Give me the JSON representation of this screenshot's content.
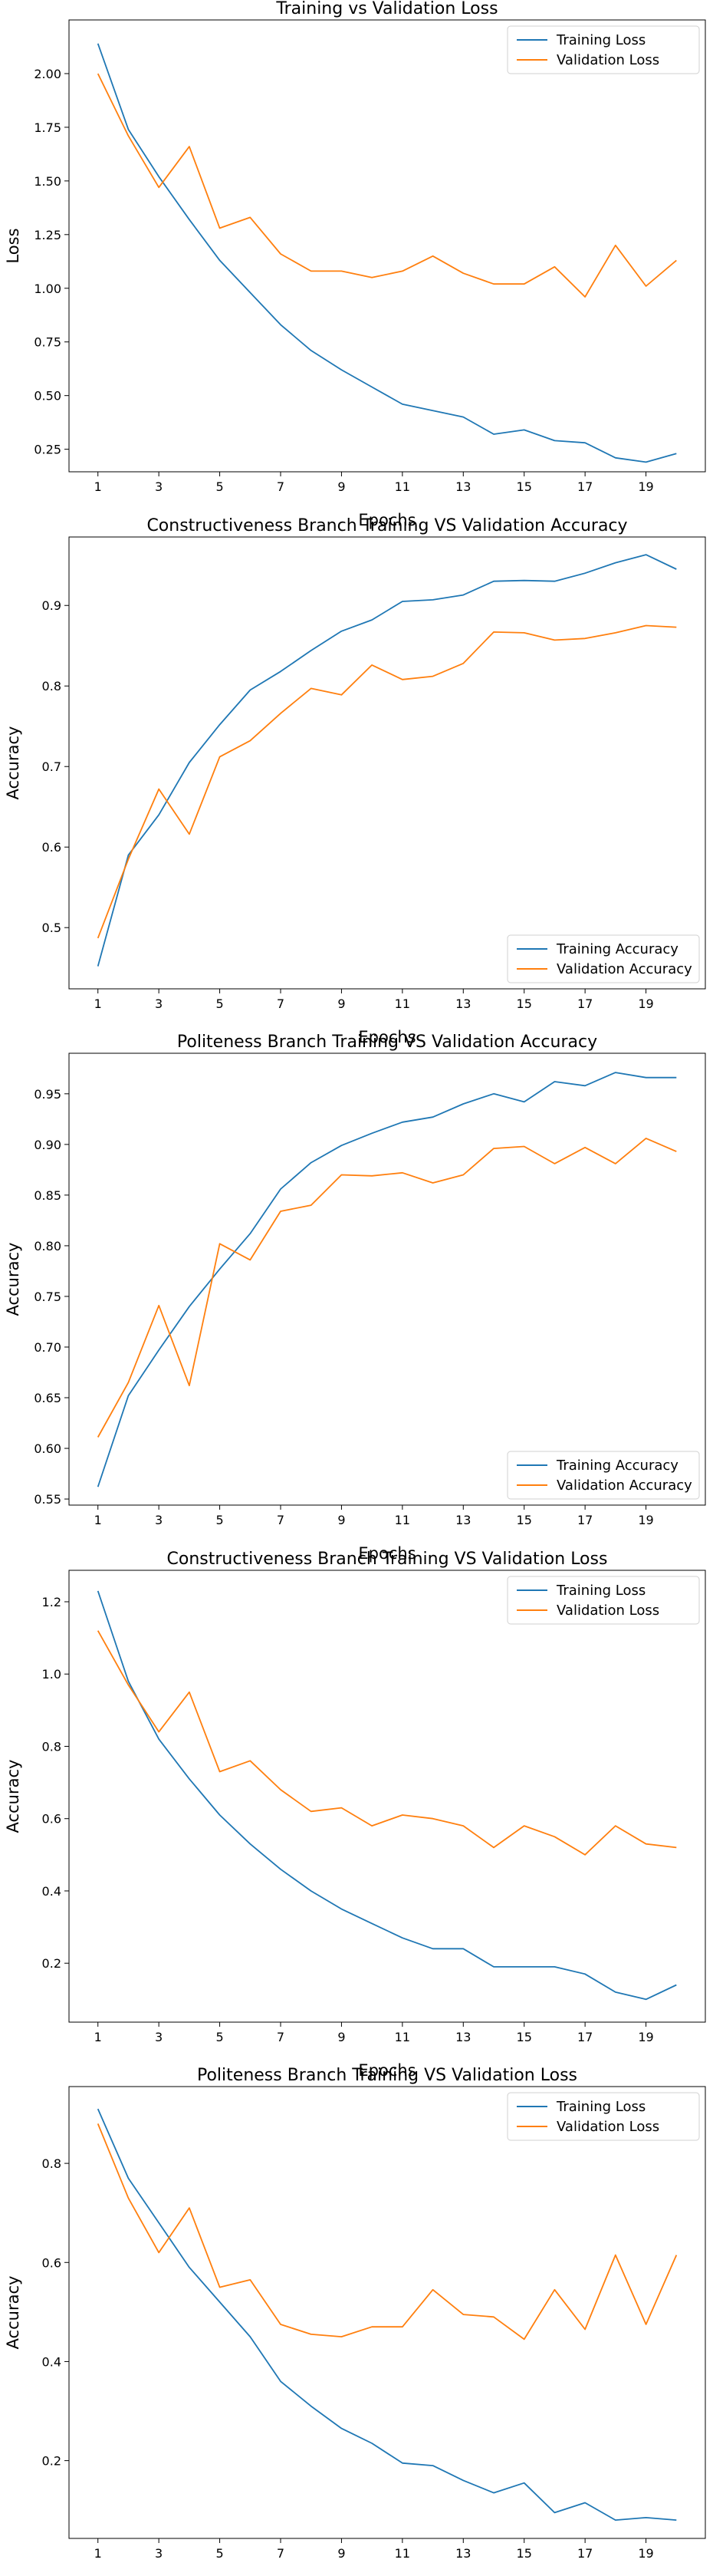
{
  "chart_data": [
    {
      "type": "line",
      "title": "Training vs Validation Loss",
      "xlabel": "Epochs",
      "ylabel": "Loss",
      "x": [
        1,
        2,
        3,
        4,
        5,
        6,
        7,
        8,
        9,
        10,
        11,
        12,
        13,
        14,
        15,
        16,
        17,
        18,
        19,
        20
      ],
      "xticks": [
        1,
        3,
        5,
        7,
        9,
        11,
        13,
        15,
        17,
        19
      ],
      "xlim": [
        0.05,
        20.95
      ],
      "ylim": [
        0.145,
        2.25
      ],
      "yticks": [
        0.25,
        0.5,
        0.75,
        1.0,
        1.25,
        1.5,
        1.75,
        2.0
      ],
      "ytick_labels": [
        "0.25",
        "0.50",
        "0.75",
        "1.00",
        "1.25",
        "1.50",
        "1.75",
        "2.00"
      ],
      "legend_position": "top-right",
      "series": [
        {
          "name": "Training Loss",
          "color": "#1f77b4",
          "values": [
            2.14,
            1.74,
            1.52,
            1.32,
            1.13,
            0.98,
            0.83,
            0.71,
            0.62,
            0.54,
            0.46,
            0.43,
            0.4,
            0.32,
            0.34,
            0.29,
            0.28,
            0.21,
            0.19,
            0.23
          ]
        },
        {
          "name": "Validation Loss",
          "color": "#ff7f0e",
          "values": [
            2.0,
            1.71,
            1.47,
            1.66,
            1.28,
            1.33,
            1.16,
            1.08,
            1.08,
            1.05,
            1.08,
            1.15,
            1.07,
            1.02,
            1.02,
            1.1,
            0.96,
            1.2,
            1.01,
            1.13
          ]
        }
      ]
    },
    {
      "type": "line",
      "title": "Constructiveness Branch Training VS Validation Accuracy",
      "xlabel": "Epochs",
      "ylabel": "Accuracy",
      "x": [
        1,
        2,
        3,
        4,
        5,
        6,
        7,
        8,
        9,
        10,
        11,
        12,
        13,
        14,
        15,
        16,
        17,
        18,
        19,
        20
      ],
      "xticks": [
        1,
        3,
        5,
        7,
        9,
        11,
        13,
        15,
        17,
        19
      ],
      "xlim": [
        0.05,
        20.95
      ],
      "ylim": [
        0.424,
        0.985
      ],
      "yticks": [
        0.5,
        0.6,
        0.7,
        0.8,
        0.9
      ],
      "ytick_labels": [
        "0.5",
        "0.6",
        "0.7",
        "0.8",
        "0.9"
      ],
      "legend_position": "bottom-right",
      "series": [
        {
          "name": "Training Accuracy",
          "color": "#1f77b4",
          "values": [
            0.452,
            0.59,
            0.64,
            0.705,
            0.752,
            0.795,
            0.818,
            0.844,
            0.868,
            0.882,
            0.905,
            0.907,
            0.913,
            0.93,
            0.931,
            0.93,
            0.94,
            0.953,
            0.963,
            0.945
          ]
        },
        {
          "name": "Validation Accuracy",
          "color": "#ff7f0e",
          "values": [
            0.487,
            0.585,
            0.672,
            0.616,
            0.712,
            0.732,
            0.766,
            0.797,
            0.789,
            0.826,
            0.808,
            0.812,
            0.828,
            0.867,
            0.866,
            0.857,
            0.859,
            0.866,
            0.875,
            0.873
          ]
        }
      ]
    },
    {
      "type": "line",
      "title": "Politeness Branch Training VS Validation Accuracy",
      "xlabel": "Epochs",
      "ylabel": "Accuracy",
      "x": [
        1,
        2,
        3,
        4,
        5,
        6,
        7,
        8,
        9,
        10,
        11,
        12,
        13,
        14,
        15,
        16,
        17,
        18,
        19,
        20
      ],
      "xticks": [
        1,
        3,
        5,
        7,
        9,
        11,
        13,
        15,
        17,
        19
      ],
      "xlim": [
        0.05,
        20.95
      ],
      "ylim": [
        0.544,
        0.99
      ],
      "yticks": [
        0.55,
        0.6,
        0.65,
        0.7,
        0.75,
        0.8,
        0.85,
        0.9,
        0.95
      ],
      "ytick_labels": [
        "0.55",
        "0.60",
        "0.65",
        "0.70",
        "0.75",
        "0.80",
        "0.85",
        "0.90",
        "0.95"
      ],
      "legend_position": "bottom-right",
      "series": [
        {
          "name": "Training Accuracy",
          "color": "#1f77b4",
          "values": [
            0.562,
            0.652,
            0.697,
            0.74,
            0.777,
            0.812,
            0.856,
            0.882,
            0.899,
            0.911,
            0.922,
            0.927,
            0.94,
            0.95,
            0.942,
            0.962,
            0.958,
            0.971,
            0.966,
            0.966
          ]
        },
        {
          "name": "Validation Accuracy",
          "color": "#ff7f0e",
          "values": [
            0.611,
            0.665,
            0.741,
            0.662,
            0.802,
            0.786,
            0.834,
            0.84,
            0.87,
            0.869,
            0.872,
            0.862,
            0.87,
            0.896,
            0.898,
            0.881,
            0.897,
            0.881,
            0.906,
            0.893
          ]
        }
      ]
    },
    {
      "type": "line",
      "title": "Constructiveness Branch Training VS Validation Loss",
      "xlabel": "Epochs",
      "ylabel": "Accuracy",
      "x": [
        1,
        2,
        3,
        4,
        5,
        6,
        7,
        8,
        9,
        10,
        11,
        12,
        13,
        14,
        15,
        16,
        17,
        18,
        19,
        20
      ],
      "xticks": [
        1,
        3,
        5,
        7,
        9,
        11,
        13,
        15,
        17,
        19
      ],
      "xlim": [
        0.05,
        20.95
      ],
      "ylim": [
        0.037,
        1.287
      ],
      "yticks": [
        0.2,
        0.4,
        0.6,
        0.8,
        1.0,
        1.2
      ],
      "ytick_labels": [
        "0.2",
        "0.4",
        "0.6",
        "0.8",
        "1.0",
        "1.2"
      ],
      "legend_position": "top-right",
      "series": [
        {
          "name": "Training Loss",
          "color": "#1f77b4",
          "values": [
            1.23,
            0.98,
            0.82,
            0.71,
            0.61,
            0.53,
            0.46,
            0.4,
            0.35,
            0.31,
            0.27,
            0.24,
            0.24,
            0.19,
            0.19,
            0.19,
            0.17,
            0.12,
            0.1,
            0.14
          ]
        },
        {
          "name": "Validation Loss",
          "color": "#ff7f0e",
          "values": [
            1.12,
            0.97,
            0.84,
            0.95,
            0.73,
            0.76,
            0.68,
            0.62,
            0.63,
            0.58,
            0.61,
            0.6,
            0.58,
            0.52,
            0.58,
            0.55,
            0.5,
            0.58,
            0.53,
            0.52
          ]
        }
      ]
    },
    {
      "type": "line",
      "title": "Politeness Branch Training VS Validation Loss",
      "xlabel": "Epochs",
      "ylabel": "Accuracy",
      "x": [
        1,
        2,
        3,
        4,
        5,
        6,
        7,
        8,
        9,
        10,
        11,
        12,
        13,
        14,
        15,
        16,
        17,
        18,
        19,
        20
      ],
      "xticks": [
        1,
        3,
        5,
        7,
        9,
        11,
        13,
        15,
        17,
        19
      ],
      "xlim": [
        0.05,
        20.95
      ],
      "ylim": [
        0.043,
        0.955
      ],
      "yticks": [
        0.2,
        0.4,
        0.6,
        0.8
      ],
      "ytick_labels": [
        "0.2",
        "0.4",
        "0.6",
        "0.8"
      ],
      "legend_position": "top-right",
      "series": [
        {
          "name": "Training Loss",
          "color": "#1f77b4",
          "values": [
            0.91,
            0.77,
            0.68,
            0.59,
            0.52,
            0.45,
            0.36,
            0.31,
            0.265,
            0.235,
            0.195,
            0.19,
            0.16,
            0.135,
            0.155,
            0.095,
            0.115,
            0.08,
            0.085,
            0.08
          ]
        },
        {
          "name": "Validation Loss",
          "color": "#ff7f0e",
          "values": [
            0.88,
            0.73,
            0.62,
            0.71,
            0.55,
            0.565,
            0.475,
            0.455,
            0.45,
            0.47,
            0.47,
            0.545,
            0.495,
            0.49,
            0.445,
            0.545,
            0.465,
            0.615,
            0.475,
            0.615
          ]
        }
      ]
    }
  ]
}
